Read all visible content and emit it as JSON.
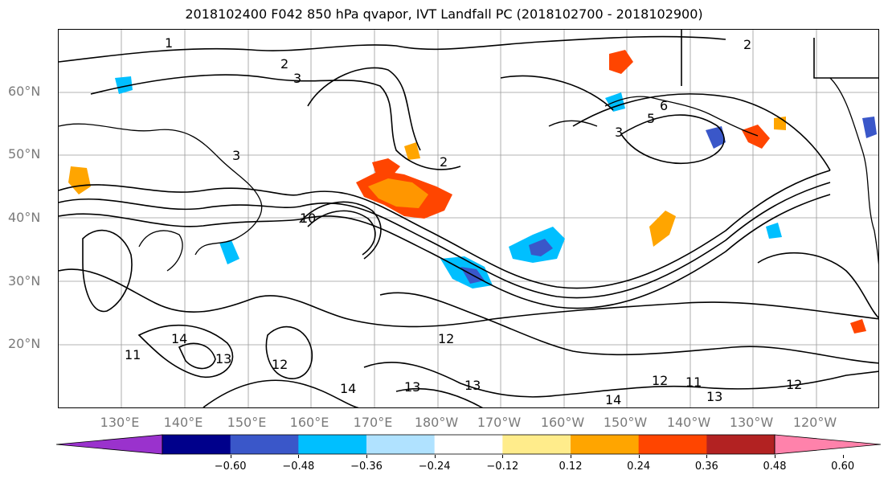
{
  "title": "2018102400 F042 850 hPa qvapor, IVT Landfall PC (2018102700 - 2018102900)",
  "lat_labels": [
    "60°N",
    "50°N",
    "40°N",
    "30°N",
    "20°N"
  ],
  "lon_labels": [
    "130°E",
    "140°E",
    "150°E",
    "160°E",
    "170°E",
    "180°W",
    "170°W",
    "160°W",
    "150°W",
    "140°W",
    "130°W",
    "120°W"
  ],
  "contour_labels": [
    "1",
    "2",
    "3",
    "2",
    "3",
    "6",
    "5",
    "3",
    "2",
    "10",
    "12",
    "13",
    "11",
    "12",
    "14",
    "13",
    "14",
    "12",
    "11",
    "13",
    "14",
    "12",
    "13"
  ],
  "colorbar": {
    "ticks": [
      "−0.60",
      "−0.48",
      "−0.36",
      "−0.24",
      "−0.12",
      "0.12",
      "0.24",
      "0.36",
      "0.48",
      "0.60"
    ],
    "colors": [
      "#9a32cd",
      "#00008b",
      "#3a57c9",
      "#00bfff",
      "#b0e2ff",
      "#ffffff",
      "#ffec8b",
      "#ffa500",
      "#ff4500",
      "#b22222",
      "#ff82ab"
    ],
    "levels": [
      -0.6,
      -0.48,
      -0.36,
      -0.24,
      -0.12,
      0.12,
      0.24,
      0.36,
      0.48,
      0.6
    ]
  }
}
